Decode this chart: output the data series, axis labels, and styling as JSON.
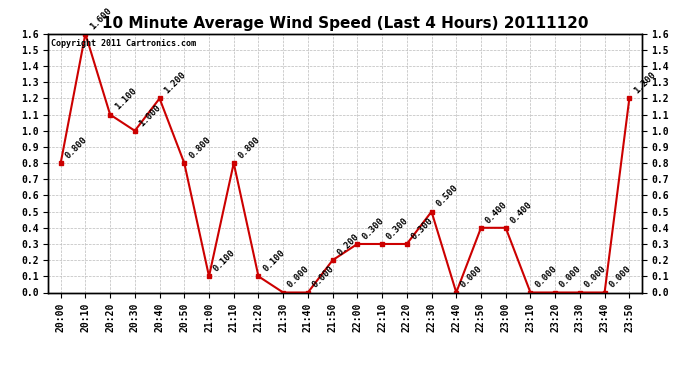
{
  "title": "10 Minute Average Wind Speed (Last 4 Hours) 20111120",
  "copyright": "Copyright 2011 Cartronics.com",
  "x_labels": [
    "20:00",
    "20:10",
    "20:20",
    "20:30",
    "20:40",
    "20:50",
    "21:00",
    "21:10",
    "21:20",
    "21:30",
    "21:40",
    "21:50",
    "22:00",
    "22:10",
    "22:20",
    "22:30",
    "22:40",
    "22:50",
    "23:00",
    "23:10",
    "23:20",
    "23:30",
    "23:40",
    "23:50"
  ],
  "y_values": [
    0.8,
    1.6,
    1.1,
    1.0,
    1.2,
    0.8,
    0.1,
    0.8,
    0.1,
    0.0,
    0.0,
    0.2,
    0.3,
    0.3,
    0.3,
    0.5,
    0.0,
    0.4,
    0.4,
    0.0,
    0.0,
    0.0,
    0.0,
    1.2
  ],
  "yticks": [
    0.0,
    0.1,
    0.2,
    0.3,
    0.4,
    0.5,
    0.6,
    0.7,
    0.8,
    0.9,
    1.0,
    1.1,
    1.2,
    1.3,
    1.4,
    1.5,
    1.6
  ],
  "ylim": [
    0.0,
    1.6
  ],
  "line_color": "#cc0000",
  "marker_color": "#cc0000",
  "bg_color": "#ffffff",
  "grid_color": "#bbbbbb",
  "title_fontsize": 11,
  "tick_fontsize": 7,
  "annotation_fontsize": 6.5
}
